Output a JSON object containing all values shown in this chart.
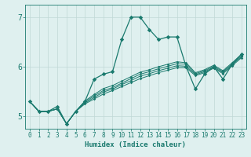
{
  "xlabel": "Humidex (Indice chaleur)",
  "ylabel": "",
  "xlim": [
    -0.5,
    23.5
  ],
  "ylim": [
    4.75,
    7.25
  ],
  "yticks": [
    5,
    6,
    7
  ],
  "xticks": [
    0,
    1,
    2,
    3,
    4,
    5,
    6,
    7,
    8,
    9,
    10,
    11,
    12,
    13,
    14,
    15,
    16,
    17,
    18,
    19,
    20,
    21,
    22,
    23
  ],
  "bg_color": "#dff0ef",
  "grid_color": "#c0d8d6",
  "line_color": "#1a7a6e",
  "main_line": [
    5.3,
    5.1,
    5.1,
    5.2,
    4.85,
    5.1,
    5.3,
    5.75,
    5.85,
    5.9,
    6.55,
    7.0,
    7.0,
    6.75,
    6.55,
    6.6,
    6.6,
    6.0,
    5.55,
    5.85,
    6.0,
    5.75,
    6.05,
    6.25
  ],
  "linear_lines": [
    [
      5.3,
      5.1,
      5.1,
      5.15,
      4.85,
      5.1,
      5.25,
      5.35,
      5.45,
      5.52,
      5.6,
      5.68,
      5.76,
      5.82,
      5.88,
      5.93,
      5.98,
      5.98,
      5.82,
      5.88,
      5.97,
      5.86,
      6.02,
      6.18
    ],
    [
      5.3,
      5.1,
      5.1,
      5.15,
      4.85,
      5.1,
      5.27,
      5.38,
      5.49,
      5.55,
      5.64,
      5.72,
      5.81,
      5.86,
      5.92,
      5.97,
      6.02,
      6.01,
      5.84,
      5.9,
      5.99,
      5.88,
      6.04,
      6.2
    ],
    [
      5.3,
      5.1,
      5.1,
      5.15,
      4.85,
      5.1,
      5.29,
      5.41,
      5.52,
      5.58,
      5.67,
      5.76,
      5.85,
      5.9,
      5.96,
      6.01,
      6.06,
      6.05,
      5.86,
      5.92,
      6.01,
      5.9,
      6.06,
      6.22
    ],
    [
      5.3,
      5.1,
      5.1,
      5.15,
      4.85,
      5.1,
      5.31,
      5.44,
      5.56,
      5.62,
      5.71,
      5.8,
      5.89,
      5.94,
      6.0,
      6.05,
      6.1,
      6.08,
      5.88,
      5.94,
      6.03,
      5.92,
      6.08,
      6.25
    ]
  ]
}
